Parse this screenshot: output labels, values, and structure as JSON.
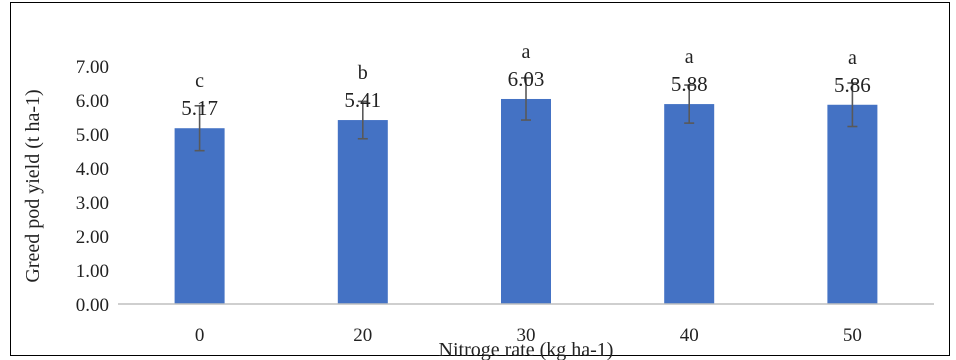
{
  "chart_data": {
    "type": "bar",
    "title": "",
    "xlabel": "Nitroge rate (kg ha-1)",
    "ylabel": "Greed pod yield (t ha-1)",
    "categories": [
      "0",
      "20",
      "30",
      "40",
      "50"
    ],
    "values": [
      5.17,
      5.41,
      6.03,
      5.88,
      5.86
    ],
    "value_labels": [
      "5.17",
      "5.41",
      "6.03",
      "5.88",
      "5.86"
    ],
    "error": [
      0.66,
      0.55,
      0.62,
      0.56,
      0.64
    ],
    "significance_letters": [
      "c",
      "b",
      "a",
      "a",
      "a"
    ],
    "ylim": [
      0,
      7
    ],
    "yticks": [
      0,
      1,
      2,
      3,
      4,
      5,
      6,
      7
    ],
    "ytick_labels": [
      "0.00",
      "1.00",
      "2.00",
      "3.00",
      "4.00",
      "5.00",
      "6.00",
      "7.00"
    ],
    "bar_color": "#4472C4",
    "error_bar_color": "#595959",
    "grid": false,
    "legend": "none"
  }
}
